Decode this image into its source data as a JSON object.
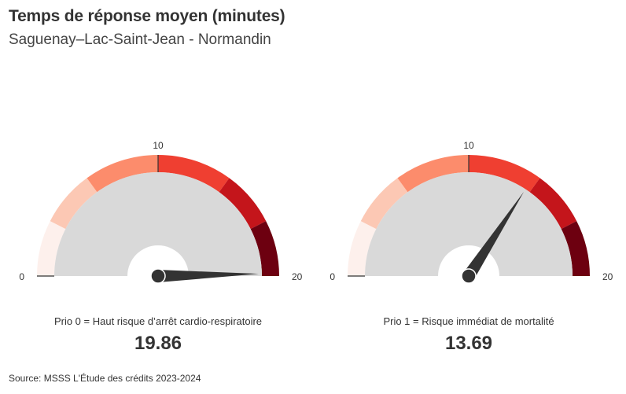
{
  "header": {
    "title": "Temps de réponse moyen (minutes)",
    "subtitle": "Saguenay–Lac-Saint-Jean - Normandin"
  },
  "footer": {
    "source_prefix": "Source: ",
    "source_text": "MSSS L'Étude des crédits 2023-2024"
  },
  "colors": {
    "band_colors": [
      "#fdf0ec",
      "#fcc8b4",
      "#fc8c6c",
      "#ef3f31",
      "#c4151b",
      "#6d0010"
    ],
    "inner_fill": "#d9d9d9",
    "needle": "#333333",
    "tick": "#333333"
  },
  "chart_data": [
    {
      "type": "gauge",
      "label": "Prio 0 = Haut risque d’arrêt cardio-respiratoire",
      "value": 19.86,
      "value_text": "19.86",
      "min": 0,
      "max": 20,
      "min_label": "0",
      "mid_label": "10",
      "max_label": "20",
      "bands": [
        [
          0,
          3
        ],
        [
          3,
          6
        ],
        [
          6,
          10
        ],
        [
          10,
          14
        ],
        [
          14,
          17
        ],
        [
          17,
          20
        ]
      ]
    },
    {
      "type": "gauge",
      "label": "Prio 1 = Risque immédiat de mortalité",
      "value": 13.69,
      "value_text": "13.69",
      "min": 0,
      "max": 20,
      "min_label": "0",
      "mid_label": "10",
      "max_label": "20",
      "bands": [
        [
          0,
          3
        ],
        [
          3,
          6
        ],
        [
          6,
          10
        ],
        [
          10,
          14
        ],
        [
          14,
          17
        ],
        [
          17,
          20
        ]
      ]
    }
  ]
}
